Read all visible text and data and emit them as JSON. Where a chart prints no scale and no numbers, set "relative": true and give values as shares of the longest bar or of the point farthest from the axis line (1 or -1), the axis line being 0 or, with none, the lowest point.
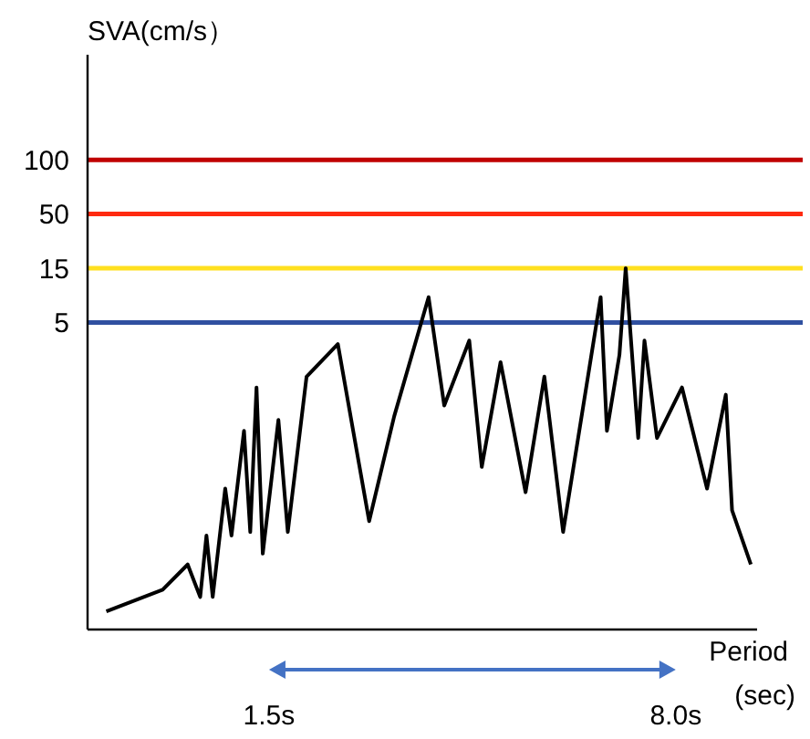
{
  "chart_data": {
    "type": "line",
    "xlabel": "Period (sec)",
    "annotations": [
      "SVA(cm/s）",
      "100",
      "50",
      "15",
      "5"
    ],
    "relative": true,
    "xlim": [
      -1.4,
      9.3
    ],
    "xticks": [
      {
        "value": 1.5,
        "label": "1.5s"
      },
      {
        "value": 8.0,
        "label": "8.0s"
      }
    ],
    "ref_lines": [
      {
        "axis": "y",
        "value": 1.3,
        "color": "#c00000"
      },
      {
        "axis": "y",
        "value": 1.15,
        "color": "#ff2a10"
      },
      {
        "axis": "y",
        "value": 1.0,
        "color": "#ffe020"
      },
      {
        "axis": "y",
        "value": 0.85,
        "color": "#3050a0"
      }
    ],
    "series": [
      {
        "color": "#000000",
        "x": [
          -1.1,
          -0.2,
          0.2,
          0.4,
          0.5,
          0.6,
          0.8,
          0.9,
          1.1,
          1.2,
          1.3,
          1.4,
          1.65,
          1.8,
          2.1,
          2.6,
          3.1,
          3.5,
          4.05,
          4.3,
          4.7,
          4.9,
          5.2,
          5.6,
          5.9,
          6.2,
          6.8,
          6.9,
          7.1,
          7.2,
          7.4,
          7.5,
          7.7,
          8.1,
          8.5,
          8.8,
          8.9,
          9.2
        ],
        "values": [
          0.05,
          0.11,
          0.18,
          0.09,
          0.26,
          0.09,
          0.39,
          0.26,
          0.55,
          0.27,
          0.67,
          0.21,
          0.58,
          0.27,
          0.7,
          0.79,
          0.3,
          0.59,
          0.92,
          0.62,
          0.8,
          0.45,
          0.74,
          0.38,
          0.7,
          0.27,
          0.92,
          0.55,
          0.76,
          1,
          0.53,
          0.8,
          0.53,
          0.67,
          0.39,
          0.65,
          0.33,
          0.18
        ]
      }
    ]
  }
}
